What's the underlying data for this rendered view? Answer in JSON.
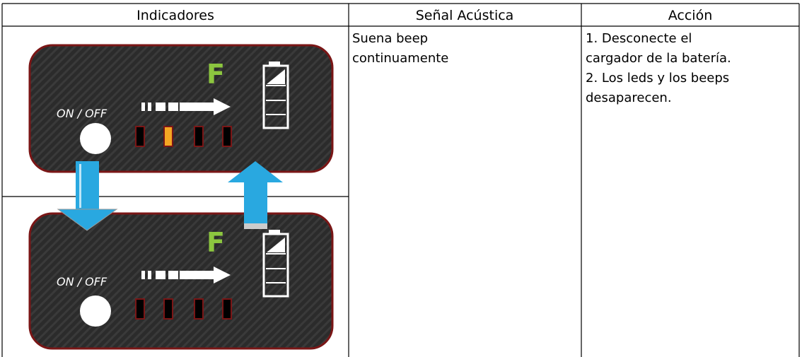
{
  "table": {
    "headers": [
      "Indicadores",
      "Señal Acústica",
      "Acción"
    ],
    "signal": [
      "Suena beep",
      "continuamente"
    ],
    "action": [
      "1. Desconecte el",
      "cargador de la batería.",
      "2. Los leds y los beeps",
      "desaparecen."
    ]
  },
  "panels": [
    {
      "switch_label": "ON / OFF",
      "full_label": "F"
    },
    {
      "switch_label": "ON / OFF",
      "full_label": "F"
    }
  ]
}
